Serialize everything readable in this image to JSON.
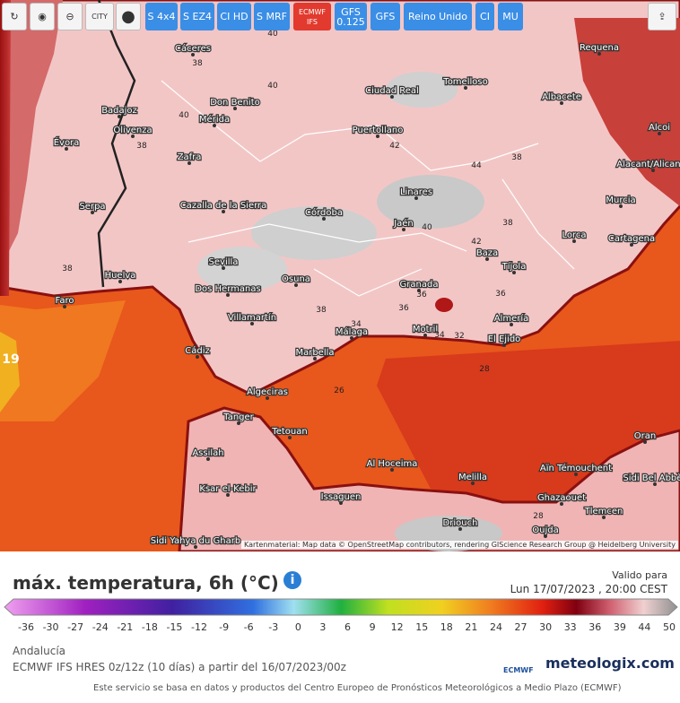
{
  "toolbar": {
    "buttons": [
      "S 4x4",
      "S EZ4",
      "CI HD",
      "S MRF",
      "ECMWF IFS",
      "GFS 0.125",
      "GFS",
      "Reino Unido",
      "CI",
      "MU"
    ],
    "city_button": "CITY"
  },
  "map": {
    "cities": [
      "Cáceres",
      "Don Benito",
      "Badajoz",
      "Mérida",
      "Olivenza",
      "Évora",
      "Zafra",
      "Ciudad Real",
      "Tomelloso",
      "Albacete",
      "Puertollano",
      "Requena",
      "Linares",
      "Cazalla de la Sierra",
      "Córdoba",
      "Jaén",
      "Murcia",
      "Serpa",
      "Lorca",
      "Cartagena",
      "Baza",
      "Tíjola",
      "Sevilla",
      "Huelva",
      "Osuna",
      "Granada",
      "Dos Hermanas",
      "Faro",
      "Almería",
      "Villamartín",
      "Málaga",
      "Motril",
      "El Ejido",
      "Cádiz",
      "Marbella",
      "Algeciras",
      "Tanger",
      "Tetouan",
      "Assilah",
      "Al Hoceima",
      "Melilla",
      "Aïn Témouchent",
      "Ksar el-Kebir",
      "Issaguen",
      "Ghazaouet",
      "Oran",
      "Tlemcen",
      "Sidi Bel Abbès",
      "Driouch",
      "Oujda",
      "Sidi Yahya du Gharb",
      "Alacant/Alicante",
      "Alcoi"
    ],
    "contour_labels": [
      40,
      38,
      40,
      40,
      38,
      42,
      44,
      38,
      40,
      42,
      38,
      38,
      36,
      36,
      34,
      34,
      32,
      28,
      26,
      28,
      19,
      38,
      36
    ],
    "attribution": "Kartenmaterial: Map data © OpenStreetMap contributors, rendering GIScience Research Group @ Heidelberg University"
  },
  "panel": {
    "title": "máx. temperatura, 6h (°C)",
    "valid_label": "Valido para",
    "valid_time": "Lun 17/07/2023 , 20:00 CEST",
    "legend_ticks": [
      -36,
      -30,
      -27,
      -24,
      -21,
      -18,
      -15,
      -12,
      -9,
      -6,
      -3,
      0,
      3,
      6,
      9,
      12,
      15,
      18,
      21,
      24,
      27,
      30,
      33,
      36,
      39,
      44,
      50
    ],
    "region": "Andalucía",
    "model": "ECMWF IFS HRES 0z/12z (10 días) a partir del 16/07/2023/00z",
    "logo_ecmwf": "ECMWF",
    "logo_site": "meteologix.com",
    "footer": "Este servicio se basa en datos y productos del Centro Europeo de Pronósticos Meteorológicos a Medio Plazo (ECMWF)"
  }
}
